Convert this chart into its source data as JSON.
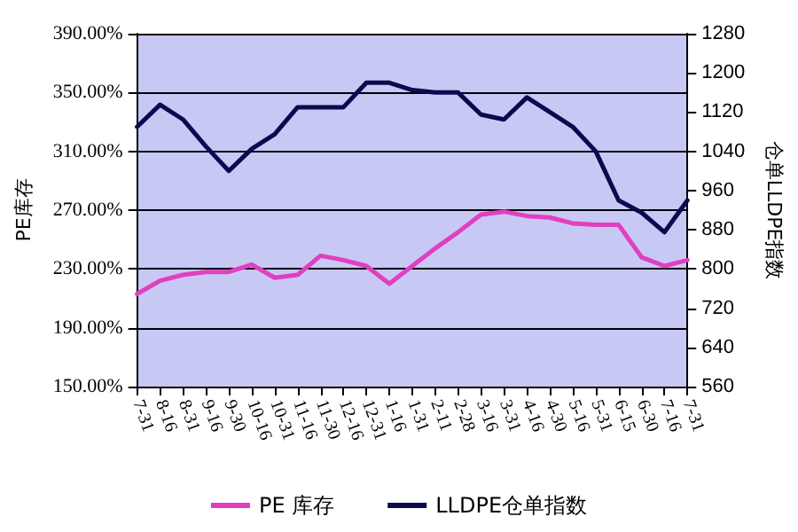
{
  "chart_data": {
    "type": "line",
    "ylabel": "PE库存",
    "y2label": "仓单LLDPE指数",
    "categories": [
      "7-31",
      "8-16",
      "8-31",
      "9-16",
      "9-30",
      "10-16",
      "10-31",
      "11-16",
      "11-30",
      "12-16",
      "12-31",
      "1-16",
      "1-31",
      "2-11",
      "2-28",
      "3-16",
      "3-31",
      "4-16",
      "4-30",
      "5-16",
      "5-31",
      "6-15",
      "6-30",
      "7-16",
      "7-31"
    ],
    "series": [
      {
        "name": "PE 库存",
        "color": "#e040c0",
        "values": [
          213,
          222,
          226,
          228,
          228,
          233,
          224,
          226,
          239,
          236,
          232,
          220,
          232,
          244,
          255,
          267,
          269,
          266,
          265,
          261,
          260,
          260,
          238,
          232,
          236
        ]
      },
      {
        "name": "LLDPE仓单指数",
        "color": "#0a0a50",
        "axis": "y2",
        "values": [
          1090,
          1135,
          1105,
          1050,
          1000,
          1045,
          1075,
          1130,
          1130,
          1130,
          1180,
          1180,
          1165,
          1160,
          1160,
          1115,
          1105,
          1150,
          1120,
          1090,
          1040,
          940,
          915,
          875,
          940
        ]
      }
    ],
    "ylim": [
      150,
      390
    ],
    "yticks": [
      {
        "value": 150,
        "label": "150.00%"
      },
      {
        "value": 190,
        "label": "190.00%"
      },
      {
        "value": 230,
        "label": "230.00%"
      },
      {
        "value": 270,
        "label": "270.00%"
      },
      {
        "value": 310,
        "label": "310.00%"
      },
      {
        "value": 350,
        "label": "350.00%"
      },
      {
        "value": 390,
        "label": "390.00%"
      }
    ],
    "y2lim": [
      560,
      1280
    ],
    "y2ticks": [
      560,
      640,
      720,
      800,
      880,
      960,
      1040,
      1120,
      1200,
      1280
    ],
    "grid": "y",
    "legend": "bottom",
    "marker": "none",
    "line_style": "solid"
  }
}
